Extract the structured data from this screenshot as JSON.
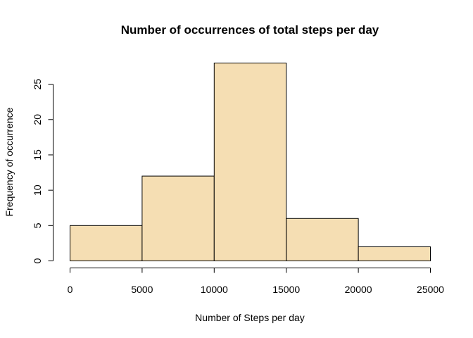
{
  "chart_data": {
    "type": "bar",
    "title": "Number of occurrences of total steps per day",
    "xlabel": "Number of Steps per day",
    "ylabel": "Frequency of occurrence",
    "bins": [
      {
        "start": 0,
        "end": 5000,
        "count": 5
      },
      {
        "start": 5000,
        "end": 10000,
        "count": 12
      },
      {
        "start": 10000,
        "end": 15000,
        "count": 28
      },
      {
        "start": 15000,
        "end": 20000,
        "count": 6
      },
      {
        "start": 20000,
        "end": 25000,
        "count": 2
      }
    ],
    "xlim": [
      0,
      25000
    ],
    "ylim": [
      0,
      28
    ],
    "xticks": [
      0,
      5000,
      10000,
      15000,
      20000,
      25000
    ],
    "yticks": [
      0,
      5,
      10,
      15,
      20,
      25
    ],
    "bar_color": "#F5DEB3",
    "edge_color": "#000000",
    "grid": false,
    "legend": "none"
  }
}
